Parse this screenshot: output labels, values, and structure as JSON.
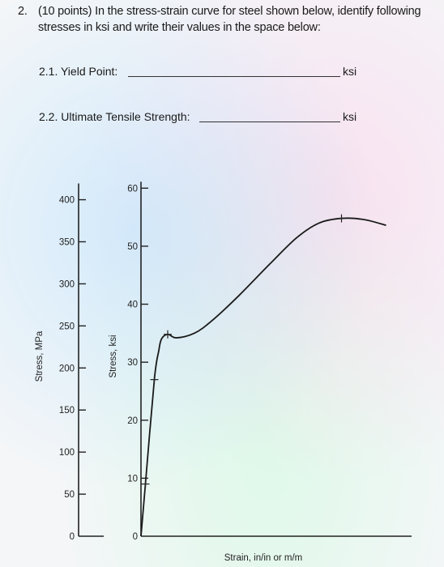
{
  "question": {
    "number": "2.",
    "line1": "(10 points) In the stress-strain curve for steel shown below, identify following",
    "line2": "stresses in ksi and write their values in the space below:"
  },
  "blanks": [
    {
      "label": "2.1. Yield Point:",
      "unit": "ksi"
    },
    {
      "label": "2.2. Ultimate Tensile Strength:",
      "unit": "ksi"
    }
  ],
  "chart_data": {
    "type": "line",
    "xlabel": "Strain, in/in or m/m",
    "ylabel_left": "Stress, MPa",
    "ylabel_right": "Stress, ksi",
    "mpa_ticks": [
      "0",
      "50",
      "100",
      "150",
      "200",
      "250",
      "300",
      "350",
      "400"
    ],
    "ksi_ticks": [
      "0",
      "10",
      "20",
      "30",
      "40",
      "50",
      "60"
    ],
    "ylim_ksi": [
      0,
      62
    ],
    "ylim_mpa": [
      0,
      427.5
    ],
    "curve_ksi": [
      {
        "x": 0,
        "y": 0
      },
      {
        "x": 0.5,
        "y": 9
      },
      {
        "x": 1.5,
        "y": 27
      },
      {
        "x": 2.0,
        "y": 32
      },
      {
        "x": 2.3,
        "y": 34
      },
      {
        "x": 3.0,
        "y": 34.8
      },
      {
        "x": 4.0,
        "y": 34.2
      },
      {
        "x": 6.0,
        "y": 35.0
      },
      {
        "x": 8.0,
        "y": 37.2
      },
      {
        "x": 11.0,
        "y": 41.5
      },
      {
        "x": 14.5,
        "y": 47.0
      },
      {
        "x": 17.5,
        "y": 51.5
      },
      {
        "x": 20.0,
        "y": 54.0
      },
      {
        "x": 22.5,
        "y": 54.8
      },
      {
        "x": 25.0,
        "y": 54.6
      },
      {
        "x": 27.5,
        "y": 53.6
      }
    ]
  }
}
